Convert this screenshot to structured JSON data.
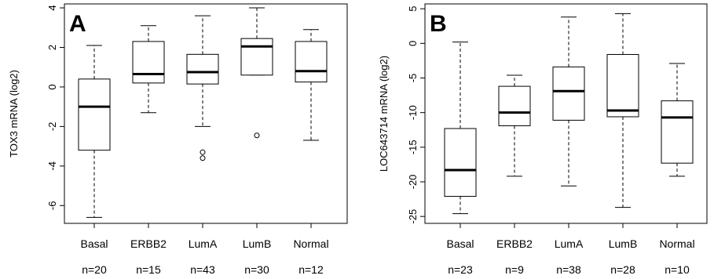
{
  "chart_data": [
    {
      "type": "box",
      "panel_label": "A",
      "ylabel": "TOX3 mRNA (log2)",
      "ylim": [
        -6.9,
        4.2
      ],
      "yticks": [
        4,
        2,
        0,
        -2,
        -4,
        -6
      ],
      "ytick_labels": [
        "4",
        "2",
        "0",
        "-2",
        "-4",
        "-6"
      ],
      "categories": [
        "Basal",
        "ERBB2",
        "LumA",
        "LumB",
        "Normal"
      ],
      "counts": [
        "n=20",
        "n=15",
        "n=43",
        "n=30",
        "n=12"
      ],
      "boxes": [
        {
          "whisker_low": -6.6,
          "q1": -3.2,
          "median": -1.0,
          "q3": 0.4,
          "whisker_high": 2.1,
          "outliers": []
        },
        {
          "whisker_low": -1.3,
          "q1": 0.2,
          "median": 0.65,
          "q3": 2.3,
          "whisker_high": 3.1,
          "outliers": []
        },
        {
          "whisker_low": -2.0,
          "q1": 0.15,
          "median": 0.75,
          "q3": 1.65,
          "whisker_high": 3.6,
          "outliers": [
            -3.3,
            -3.6
          ]
        },
        {
          "whisker_low": 0.6,
          "q1": 0.6,
          "median": 2.05,
          "q3": 2.45,
          "whisker_high": 4.0,
          "outliers": [
            -2.45
          ]
        },
        {
          "whisker_low": -2.7,
          "q1": 0.25,
          "median": 0.8,
          "q3": 2.3,
          "whisker_high": 2.9,
          "outliers": []
        }
      ]
    },
    {
      "type": "box",
      "panel_label": "B",
      "ylabel": "LOC643714 mRNA (log2)",
      "ylim": [
        -26.0,
        5.7
      ],
      "yticks": [
        5,
        0,
        -5,
        -10,
        -15,
        -20,
        -25
      ],
      "ytick_labels": [
        "5",
        "0",
        "-5",
        "-10",
        "-15",
        "-20",
        "-25"
      ],
      "categories": [
        "Basal",
        "ERBB2",
        "LumA",
        "LumB",
        "Normal"
      ],
      "counts": [
        "n=23",
        "n=9",
        "n=38",
        "n=28",
        "n=10"
      ],
      "boxes": [
        {
          "whisker_low": -24.6,
          "q1": -22.1,
          "median": -18.3,
          "q3": -12.3,
          "whisker_high": 0.2,
          "outliers": []
        },
        {
          "whisker_low": -19.2,
          "q1": -11.9,
          "median": -10.0,
          "q3": -6.2,
          "whisker_high": -4.6,
          "outliers": []
        },
        {
          "whisker_low": -20.6,
          "q1": -11.1,
          "median": -6.9,
          "q3": -3.4,
          "whisker_high": 3.8,
          "outliers": []
        },
        {
          "whisker_low": -23.7,
          "q1": -10.6,
          "median": -9.7,
          "q3": -1.6,
          "whisker_high": 4.3,
          "outliers": []
        },
        {
          "whisker_low": -19.2,
          "q1": -17.3,
          "median": -10.7,
          "q3": -8.3,
          "whisker_high": -2.9,
          "outliers": []
        }
      ]
    }
  ]
}
